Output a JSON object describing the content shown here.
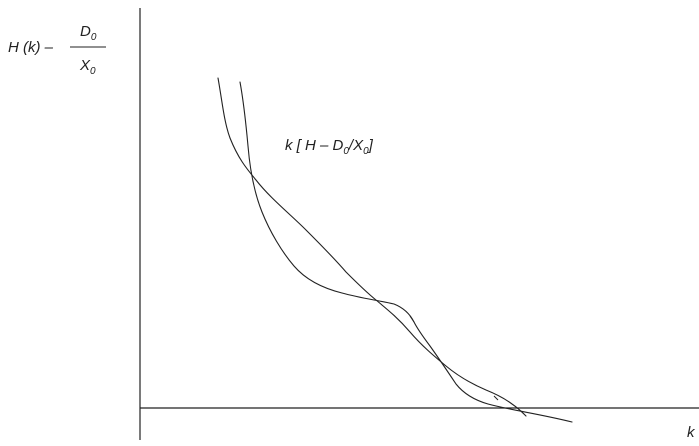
{
  "ylabel": {
    "prefix": "H (k) –",
    "numerator": "D",
    "numerator_sub": "0",
    "denominator": "X",
    "denominator_sub": "0"
  },
  "curve_label": {
    "prefix": "k [ H – D",
    "sub1": "0",
    "middle": "/X",
    "sub2": "0",
    "suffix": "]"
  },
  "xlabel": "k",
  "colors": {
    "ink": "#222222",
    "background": "#ffffff"
  }
}
